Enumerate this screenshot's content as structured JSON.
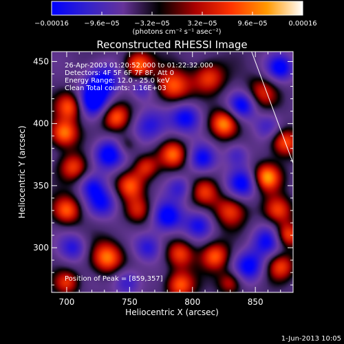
{
  "chart_data": {
    "type": "heatmap",
    "title": "Reconstructed RHESSI Image",
    "xlabel": "Heliocentric X (arcsec)",
    "ylabel": "Heliocentric Y (arcsec)",
    "xlim": [
      688,
      880
    ],
    "ylim": [
      264,
      458
    ],
    "x_ticks": [
      {
        "value": 700,
        "label": "700"
      },
      {
        "value": 750,
        "label": "750"
      },
      {
        "value": 800,
        "label": "800"
      },
      {
        "value": 850,
        "label": "850"
      }
    ],
    "y_ticks": [
      {
        "value": 300,
        "label": "300"
      },
      {
        "value": 350,
        "label": "350"
      },
      {
        "value": 400,
        "label": "400"
      },
      {
        "value": 450,
        "label": "450"
      }
    ],
    "colorbar": {
      "range": [
        -0.00016,
        0.00016
      ],
      "unit_label": "(photons cm⁻² s⁻¹ asec⁻²)",
      "ticks": [
        {
          "value": -0.00016,
          "label": "−0.00016"
        },
        {
          "value": -9.6e-05,
          "label": "−9.6e−05"
        },
        {
          "value": -3.2e-05,
          "label": "−3.2e−05"
        },
        {
          "value": 3.2e-05,
          "label": "3.2e−05"
        },
        {
          "value": 9.6e-05,
          "label": "9.6e−05"
        },
        {
          "value": 0.00016,
          "label": "0.00016"
        }
      ],
      "colors": [
        "#0000ff",
        "#3322cc",
        "#663399",
        "#000000",
        "#aa0000",
        "#ff3300",
        "#ff9900",
        "#ffffff"
      ]
    },
    "annotations": [
      "26-Apr-2003 01:20:52.000 to 01:22:32.000",
      "Detectors: 4F 5F 6F 7F 8F, Att 0",
      "Energy Range: 12.0 - 25.0 keV",
      "Clean     Total counts: 1.16E+03"
    ],
    "peak_label": "Position of Peak = [859,357]",
    "peak": {
      "x": 859,
      "y": 357
    },
    "limb_line": [
      {
        "x": 847,
        "y": 458
      },
      {
        "x": 880,
        "y": 368
      }
    ],
    "blobs": [
      {
        "x": 757,
        "y": 447,
        "v": 0.9,
        "s": 8
      },
      {
        "x": 729,
        "y": 435,
        "v": -0.8,
        "s": 10
      },
      {
        "x": 785,
        "y": 430,
        "v": 0.8,
        "s": 10
      },
      {
        "x": 813,
        "y": 437,
        "v": 0.7,
        "s": 9
      },
      {
        "x": 703,
        "y": 414,
        "v": 0.8,
        "s": 8
      },
      {
        "x": 720,
        "y": 418,
        "v": -0.9,
        "s": 9
      },
      {
        "x": 698,
        "y": 392,
        "v": 0.9,
        "s": 8
      },
      {
        "x": 739,
        "y": 405,
        "v": 0.8,
        "s": 8
      },
      {
        "x": 766,
        "y": 398,
        "v": -0.6,
        "s": 10
      },
      {
        "x": 795,
        "y": 405,
        "v": -0.8,
        "s": 9
      },
      {
        "x": 825,
        "y": 400,
        "v": 0.95,
        "s": 8
      },
      {
        "x": 855,
        "y": 425,
        "v": 0.6,
        "s": 9
      },
      {
        "x": 870,
        "y": 445,
        "v": -0.8,
        "s": 8
      },
      {
        "x": 860,
        "y": 398,
        "v": -0.5,
        "s": 8
      },
      {
        "x": 873,
        "y": 385,
        "v": 0.8,
        "s": 8
      },
      {
        "x": 705,
        "y": 365,
        "v": 0.7,
        "s": 8
      },
      {
        "x": 733,
        "y": 375,
        "v": -0.9,
        "s": 9
      },
      {
        "x": 750,
        "y": 350,
        "v": 0.7,
        "s": 8
      },
      {
        "x": 763,
        "y": 365,
        "v": 0.6,
        "s": 7
      },
      {
        "x": 785,
        "y": 375,
        "v": 0.8,
        "s": 8
      },
      {
        "x": 808,
        "y": 372,
        "v": -0.7,
        "s": 8
      },
      {
        "x": 810,
        "y": 345,
        "v": 0.6,
        "s": 8
      },
      {
        "x": 840,
        "y": 352,
        "v": -0.8,
        "s": 9
      },
      {
        "x": 859,
        "y": 357,
        "v": 1.0,
        "s": 8
      },
      {
        "x": 868,
        "y": 330,
        "v": 0.7,
        "s": 8
      },
      {
        "x": 700,
        "y": 330,
        "v": 0.8,
        "s": 8
      },
      {
        "x": 728,
        "y": 336,
        "v": -0.7,
        "s": 9
      },
      {
        "x": 757,
        "y": 330,
        "v": 0.6,
        "s": 8
      },
      {
        "x": 780,
        "y": 325,
        "v": -0.9,
        "s": 9
      },
      {
        "x": 805,
        "y": 318,
        "v": -0.6,
        "s": 8
      },
      {
        "x": 830,
        "y": 330,
        "v": 0.7,
        "s": 9
      },
      {
        "x": 860,
        "y": 305,
        "v": -0.7,
        "s": 9
      },
      {
        "x": 875,
        "y": 310,
        "v": 0.8,
        "s": 7
      },
      {
        "x": 705,
        "y": 300,
        "v": -0.6,
        "s": 8
      },
      {
        "x": 732,
        "y": 292,
        "v": 0.9,
        "s": 9
      },
      {
        "x": 765,
        "y": 300,
        "v": -0.6,
        "s": 8
      },
      {
        "x": 790,
        "y": 295,
        "v": 0.7,
        "s": 8
      },
      {
        "x": 818,
        "y": 293,
        "v": 0.8,
        "s": 8
      },
      {
        "x": 845,
        "y": 285,
        "v": -0.8,
        "s": 9
      },
      {
        "x": 870,
        "y": 285,
        "v": 0.7,
        "s": 8
      },
      {
        "x": 700,
        "y": 272,
        "v": 0.6,
        "s": 7
      },
      {
        "x": 748,
        "y": 272,
        "v": -0.6,
        "s": 8
      },
      {
        "x": 790,
        "y": 270,
        "v": 0.8,
        "s": 8
      },
      {
        "x": 830,
        "y": 272,
        "v": 0.6,
        "s": 7
      },
      {
        "x": 760,
        "y": 428,
        "v": -0.5,
        "s": 7
      },
      {
        "x": 840,
        "y": 415,
        "v": -0.8,
        "s": 8
      },
      {
        "x": 835,
        "y": 375,
        "v": -0.5,
        "s": 7
      },
      {
        "x": 720,
        "y": 350,
        "v": -0.5,
        "s": 7
      },
      {
        "x": 790,
        "y": 348,
        "v": -0.5,
        "s": 7
      },
      {
        "x": 748,
        "y": 383,
        "v": 0.4,
        "s": 6
      }
    ]
  },
  "footer": {
    "timestamp": "1-Jun-2013 10:05"
  }
}
